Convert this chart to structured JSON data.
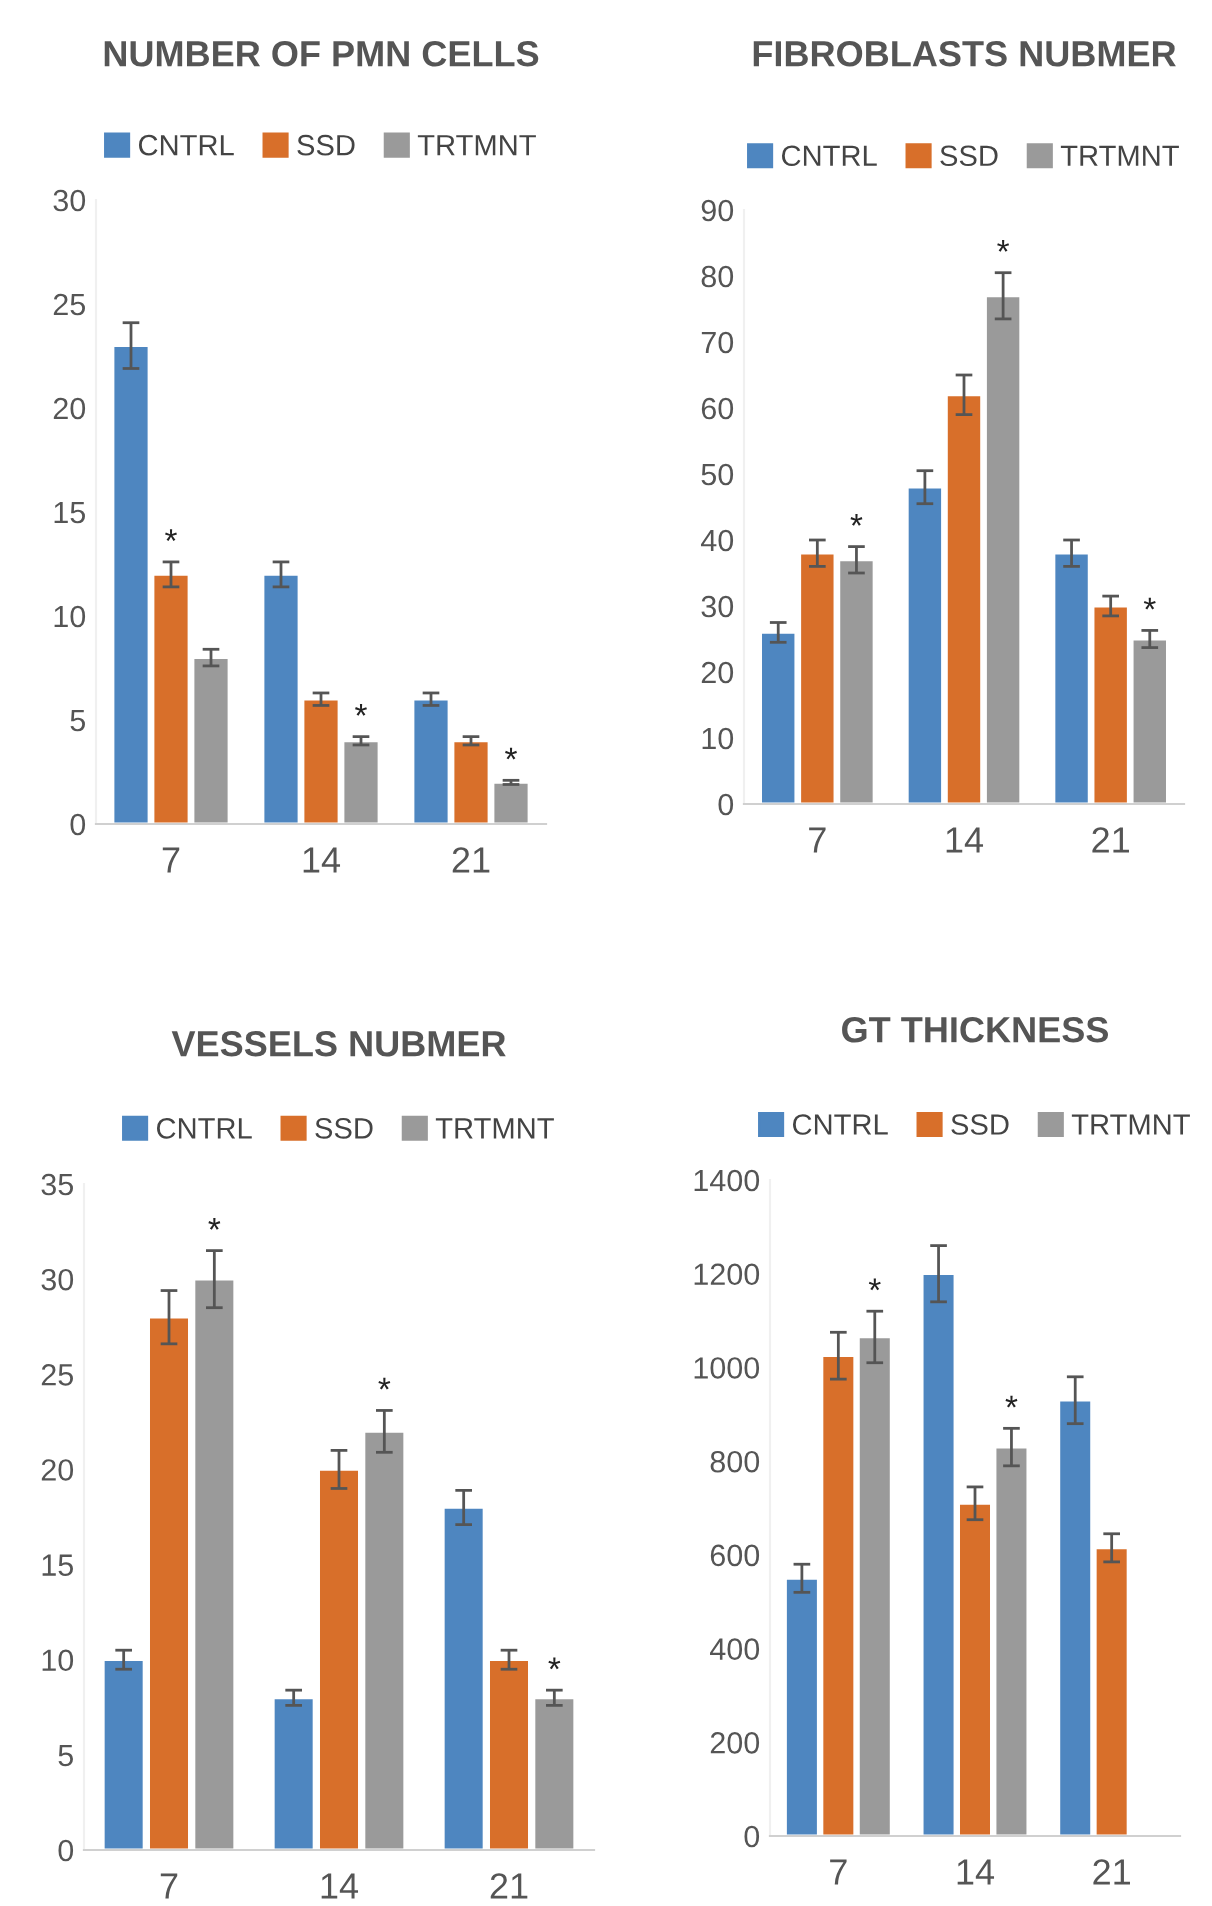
{
  "chart_data": [
    {
      "type": "bar",
      "title": "NUMBER OF PMN CELLS",
      "categories": [
        "7",
        "14",
        "21"
      ],
      "ylim": [
        0,
        30
      ],
      "yticks": [
        0,
        5,
        10,
        15,
        20,
        25,
        30
      ],
      "grid": false,
      "legend": "top",
      "series": [
        {
          "name": "CNTRL",
          "color": "#4e86c0",
          "values": [
            23,
            12,
            6
          ],
          "errors": [
            1.1,
            0.6,
            0.3
          ]
        },
        {
          "name": "SSD",
          "color": "#d86f2a",
          "values": [
            12,
            6,
            4
          ],
          "errors": [
            0.6,
            0.3,
            0.2
          ],
          "value_labels": [
            "*",
            null,
            null
          ]
        },
        {
          "name": "TRTMNT",
          "color": "#9a9a9a",
          "values": [
            8,
            4,
            2
          ],
          "errors": [
            0.4,
            0.2,
            0.1
          ],
          "value_labels": [
            null,
            "*",
            "*"
          ]
        }
      ]
    },
    {
      "type": "bar",
      "title": "FIBROBLASTS NUBMER",
      "categories": [
        "7",
        "14",
        "21"
      ],
      "ylim": [
        0,
        90
      ],
      "yticks": [
        0,
        10,
        20,
        30,
        40,
        50,
        60,
        70,
        80,
        90
      ],
      "grid": false,
      "legend": "top",
      "series": [
        {
          "name": "CNTRL",
          "color": "#4e86c0",
          "values": [
            26,
            48,
            38
          ],
          "errors": [
            1.5,
            2.5,
            2
          ]
        },
        {
          "name": "SSD",
          "color": "#d86f2a",
          "values": [
            38,
            62,
            30
          ],
          "errors": [
            2,
            3,
            1.5
          ]
        },
        {
          "name": "TRTMNT",
          "color": "#9a9a9a",
          "values": [
            37,
            77,
            25
          ],
          "errors": [
            2,
            3.5,
            1.3
          ],
          "value_labels": [
            "*",
            "*",
            "*"
          ]
        }
      ]
    },
    {
      "type": "bar",
      "title": "VESSELS NUBMER",
      "categories": [
        "7",
        "14",
        "21"
      ],
      "ylim": [
        0,
        35
      ],
      "yticks": [
        0,
        5,
        10,
        15,
        20,
        25,
        30,
        35
      ],
      "grid": false,
      "legend": "top",
      "series": [
        {
          "name": "CNTRL",
          "color": "#4e86c0",
          "values": [
            10,
            8,
            18
          ],
          "errors": [
            0.5,
            0.4,
            0.9
          ]
        },
        {
          "name": "SSD",
          "color": "#d86f2a",
          "values": [
            28,
            20,
            10
          ],
          "errors": [
            1.4,
            1,
            0.5
          ]
        },
        {
          "name": "TRTMNT",
          "color": "#9a9a9a",
          "values": [
            30,
            22,
            8
          ],
          "errors": [
            1.5,
            1.1,
            0.4
          ],
          "value_labels": [
            "*",
            "*",
            "*"
          ]
        }
      ]
    },
    {
      "type": "bar",
      "title": "GT THICKNESS",
      "categories": [
        "7",
        "14",
        "21"
      ],
      "ylim": [
        0,
        1400
      ],
      "yticks": [
        0,
        200,
        400,
        600,
        800,
        1000,
        1200,
        1400
      ],
      "grid": false,
      "legend": "top",
      "series": [
        {
          "name": "CNTRL",
          "color": "#4e86c0",
          "values": [
            550,
            1200,
            930
          ],
          "errors": [
            30,
            60,
            50
          ]
        },
        {
          "name": "SSD",
          "color": "#d86f2a",
          "values": [
            1025,
            710,
            615
          ],
          "errors": [
            50,
            35,
            30
          ]
        },
        {
          "name": "TRTMNT",
          "color": "#9a9a9a",
          "values": [
            1065,
            830,
            null
          ],
          "errors": [
            55,
            40,
            null
          ],
          "value_labels": [
            "*",
            "*",
            null
          ]
        }
      ]
    }
  ]
}
